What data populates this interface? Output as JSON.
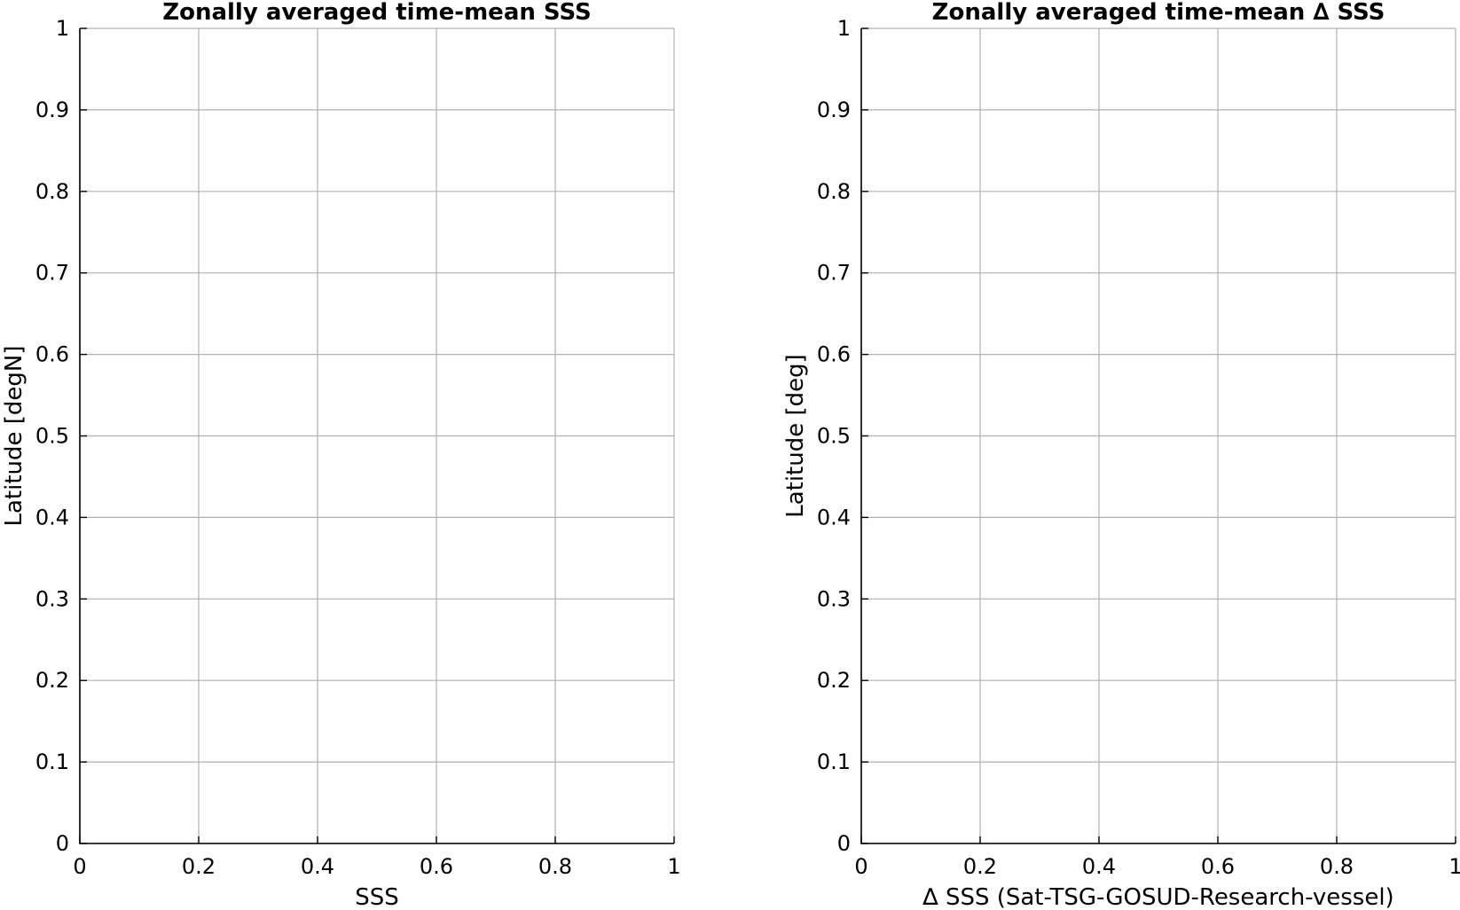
{
  "chart_data": [
    {
      "type": "line",
      "title": "Zonally averaged time-mean SSS",
      "xlabel": "SSS",
      "ylabel": "Latitude [degN]",
      "xlim": [
        0,
        1
      ],
      "ylim": [
        0,
        1
      ],
      "xticks": [
        "0",
        "0.2",
        "0.4",
        "0.6",
        "0.8",
        "1"
      ],
      "yticks": [
        "0",
        "0.1",
        "0.2",
        "0.3",
        "0.4",
        "0.5",
        "0.6",
        "0.7",
        "0.8",
        "0.9",
        "1"
      ],
      "grid": true,
      "series": []
    },
    {
      "type": "line",
      "title": "Zonally averaged time-mean ∆ SSS",
      "xlabel": "∆ SSS (Sat-TSG-GOSUD-Research-vessel)",
      "ylabel": "Latitude [deg]",
      "xlim": [
        0,
        1
      ],
      "ylim": [
        0,
        1
      ],
      "xticks": [
        "0",
        "0.2",
        "0.4",
        "0.6",
        "0.8",
        "1"
      ],
      "yticks": [
        "0",
        "0.1",
        "0.2",
        "0.3",
        "0.4",
        "0.5",
        "0.6",
        "0.7",
        "0.8",
        "0.9",
        "1"
      ],
      "grid": true,
      "series": []
    }
  ]
}
